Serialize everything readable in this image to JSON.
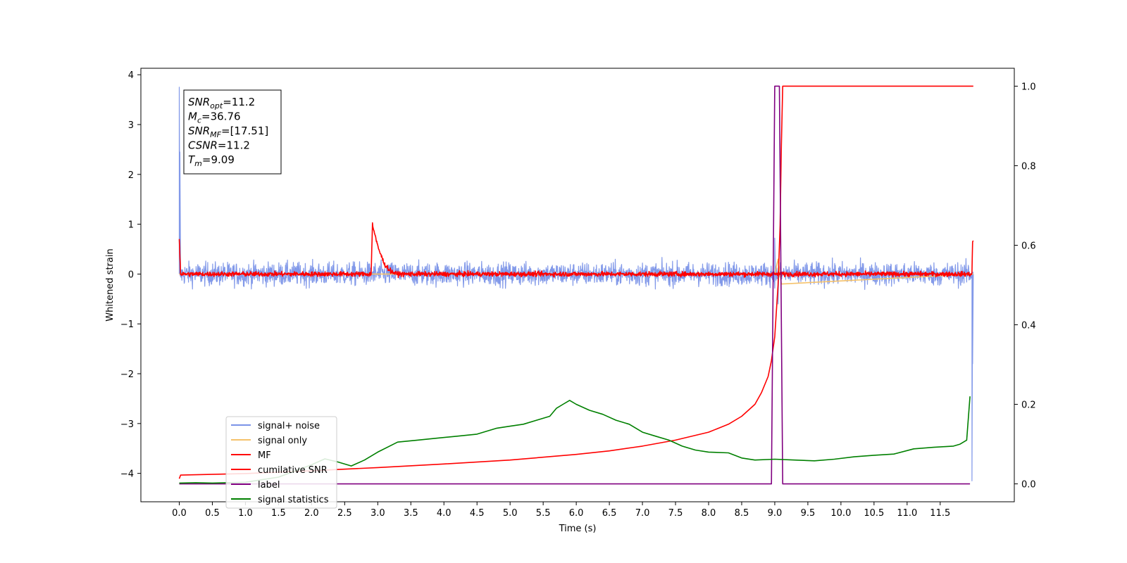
{
  "chart_data": {
    "type": "line",
    "xlabel": "Time (s)",
    "ylabel": "Whitened strain",
    "xlim": [
      -0.58,
      12.62
    ],
    "ylim": [
      -4.57,
      4.13
    ],
    "y2lim": [
      -0.045,
      1.045
    ],
    "x_ticks": [
      "0.0",
      "0.5",
      "1.0",
      "1.5",
      "2.0",
      "2.5",
      "3.0",
      "3.5",
      "4.0",
      "4.5",
      "5.0",
      "5.5",
      "6.0",
      "6.5",
      "7.0",
      "7.5",
      "8.0",
      "8.5",
      "9.0",
      "9.5",
      "10.0",
      "10.5",
      "11.0",
      "11.5"
    ],
    "y_ticks": [
      "4",
      "3",
      "2",
      "1",
      "0",
      "−1",
      "−2",
      "−3",
      "−4"
    ],
    "y2_ticks": [
      "1.0",
      "0.8",
      "0.6",
      "0.4",
      "0.2",
      "0.0"
    ],
    "annotation": [
      {
        "sym": "SNR",
        "sub": "opt",
        "rest": "=11.2"
      },
      {
        "sym": "M",
        "sub": "c",
        "rest": "=36.76"
      },
      {
        "sym": "SNR",
        "sub": "MF",
        "rest": "=[17.51]"
      },
      {
        "sym": "CSNR",
        "sub": "",
        "rest": "=11.2"
      },
      {
        "sym": "T",
        "sub": "m",
        "rest": "=9.09"
      }
    ],
    "legend_position": "lower-left",
    "series": [
      {
        "name": "signal+ noise",
        "color": "#7b93e8",
        "axis": "left",
        "noise_amplitude": 0.18,
        "spikes": [
          [
            0.0,
            3.75
          ],
          [
            0.01,
            2.45
          ],
          [
            9.0,
            0.72
          ],
          [
            9.05,
            -0.6
          ],
          [
            11.98,
            -4.15
          ],
          [
            11.99,
            -1.8
          ]
        ],
        "x_range": [
          0.0,
          12.0
        ]
      },
      {
        "name": "signal only",
        "color": "#f5c26b",
        "axis": "left",
        "x": [
          0.0,
          2.9,
          3.0,
          9.0,
          9.05,
          9.1,
          12.0
        ],
        "y": [
          0.0,
          0.0,
          0.0,
          0.0,
          0.3,
          -0.2,
          0.0
        ]
      },
      {
        "name": "MF",
        "color": "#ff0000",
        "axis": "left",
        "noise_amplitude": 0.05,
        "x": [
          0.0,
          0.02,
          2.9,
          2.92,
          3.0,
          3.1,
          3.2,
          3.3,
          11.98,
          11.99
        ],
        "y": [
          0.72,
          0.0,
          0.0,
          1.0,
          0.55,
          0.2,
          0.05,
          0.0,
          0.0,
          0.65
        ]
      },
      {
        "name": "cumilative SNR",
        "color": "#ff0000",
        "axis": "right",
        "x": [
          0.0,
          0.02,
          1.0,
          2.0,
          3.0,
          4.0,
          5.0,
          6.0,
          6.5,
          7.0,
          7.5,
          8.0,
          8.3,
          8.5,
          8.7,
          8.8,
          8.9,
          8.95,
          9.0,
          9.05,
          9.08,
          9.1,
          9.12,
          12.0
        ],
        "y": [
          0.013,
          0.022,
          0.026,
          0.033,
          0.041,
          0.05,
          0.06,
          0.074,
          0.083,
          0.095,
          0.11,
          0.13,
          0.15,
          0.17,
          0.2,
          0.23,
          0.27,
          0.31,
          0.37,
          0.5,
          0.65,
          0.85,
          1.0,
          1.0
        ]
      },
      {
        "name": "label",
        "color": "#800080",
        "axis": "right",
        "x": [
          0.0,
          8.95,
          9.0,
          9.07,
          9.12,
          11.95
        ],
        "y": [
          0.0,
          0.0,
          1.0,
          1.0,
          0.0,
          0.0
        ]
      },
      {
        "name": "signal statistics",
        "color": "#008000",
        "axis": "right",
        "x": [
          0.0,
          0.25,
          0.5,
          1.0,
          1.5,
          2.0,
          2.2,
          2.4,
          2.6,
          2.8,
          3.0,
          3.3,
          3.6,
          3.9,
          4.2,
          4.5,
          4.8,
          5.0,
          5.2,
          5.4,
          5.6,
          5.7,
          5.8,
          5.9,
          6.0,
          6.2,
          6.4,
          6.6,
          6.8,
          7.0,
          7.2,
          7.4,
          7.6,
          7.8,
          8.0,
          8.3,
          8.5,
          8.7,
          9.0,
          9.3,
          9.6,
          9.9,
          10.2,
          10.5,
          10.8,
          11.1,
          11.4,
          11.7,
          11.8,
          11.9,
          11.95
        ],
        "y": [
          0.002,
          0.003,
          0.002,
          0.004,
          0.017,
          0.048,
          0.063,
          0.055,
          0.045,
          0.06,
          0.08,
          0.105,
          0.11,
          0.115,
          0.12,
          0.125,
          0.14,
          0.145,
          0.15,
          0.16,
          0.17,
          0.19,
          0.2,
          0.21,
          0.2,
          0.185,
          0.175,
          0.16,
          0.15,
          0.13,
          0.12,
          0.11,
          0.095,
          0.085,
          0.08,
          0.078,
          0.065,
          0.06,
          0.062,
          0.06,
          0.058,
          0.062,
          0.068,
          0.072,
          0.075,
          0.088,
          0.092,
          0.095,
          0.1,
          0.11,
          0.22
        ]
      }
    ]
  }
}
